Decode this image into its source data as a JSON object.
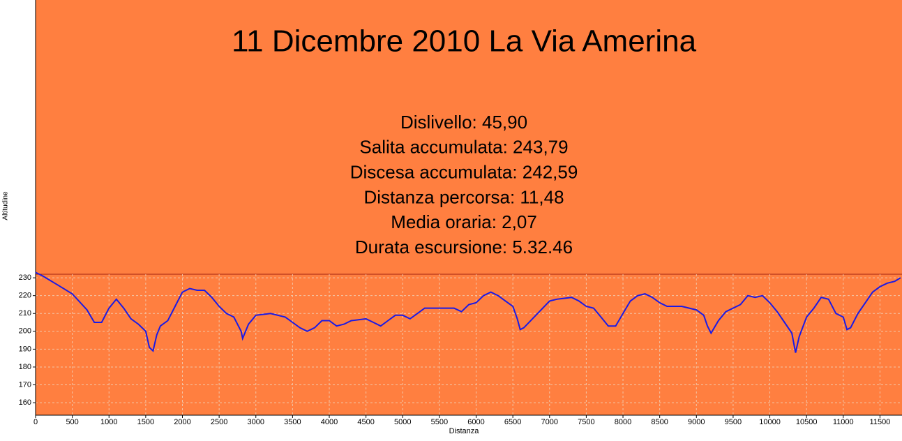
{
  "chart_data": {
    "type": "line",
    "title": "11 Dicembre 2010 La Via Amerina",
    "annotations": [
      "Dislivello: 45,90",
      "Salita accumulata: 243,79",
      "Discesa accumulata: 242,59",
      "Distanza percorsa: 11,48",
      "Media oraria: 2,07",
      "Durata escursione: 5.32.46"
    ],
    "x_label": "Distanza",
    "y_label": "Altitudine",
    "background": "#ff7f40",
    "grid": true,
    "xlim": [
      0,
      11800
    ],
    "ylim": [
      153,
      232
    ],
    "xticks": [
      0,
      500,
      1000,
      1500,
      2000,
      2500,
      3000,
      3500,
      4000,
      4500,
      5000,
      5500,
      6000,
      6500,
      7000,
      7500,
      8000,
      8500,
      9000,
      9500,
      10000,
      10500,
      11000,
      11500
    ],
    "yticks": [
      160,
      170,
      180,
      190,
      200,
      210,
      220,
      230
    ],
    "x": [
      0,
      100,
      300,
      500,
      700,
      800,
      900,
      1000,
      1100,
      1200,
      1300,
      1400,
      1500,
      1550,
      1600,
      1650,
      1700,
      1800,
      1900,
      2000,
      2100,
      2200,
      2300,
      2400,
      2500,
      2600,
      2700,
      2800,
      2820,
      2900,
      3000,
      3200,
      3400,
      3500,
      3600,
      3700,
      3800,
      3900,
      4000,
      4100,
      4200,
      4300,
      4500,
      4600,
      4700,
      4800,
      4900,
      5000,
      5100,
      5200,
      5300,
      5500,
      5700,
      5800,
      5900,
      6000,
      6100,
      6200,
      6300,
      6400,
      6500,
      6560,
      6600,
      6650,
      7000,
      7100,
      7300,
      7400,
      7500,
      7600,
      7700,
      7800,
      7900,
      8000,
      8100,
      8200,
      8300,
      8400,
      8500,
      8600,
      8800,
      9000,
      9100,
      9150,
      9200,
      9300,
      9400,
      9600,
      9700,
      9800,
      9900,
      10000,
      10100,
      10200,
      10300,
      10350,
      10400,
      10500,
      10600,
      10700,
      10800,
      10900,
      11000,
      11050,
      11100,
      11200,
      11300,
      11400,
      11500,
      11600,
      11700,
      11780
    ],
    "series": [
      {
        "name": "Altitudine",
        "color": "#1a1ae6",
        "values": [
          233,
          231,
          226,
          221,
          212,
          205,
          205,
          213,
          218,
          213,
          207,
          204,
          200,
          191,
          189,
          198,
          203,
          206,
          214,
          222,
          224,
          223,
          223,
          219,
          214,
          210,
          208,
          200,
          196,
          204,
          209,
          210,
          208,
          205,
          202,
          200,
          202,
          206,
          206,
          203,
          204,
          206,
          207,
          205,
          203,
          206,
          209,
          209,
          207,
          210,
          213,
          213,
          213,
          211,
          215,
          216,
          220,
          222,
          220,
          217,
          214,
          207,
          201,
          202,
          217,
          218,
          219,
          217,
          214,
          213,
          208,
          203,
          203,
          210,
          217,
          220,
          221,
          219,
          216,
          214,
          214,
          212,
          209,
          203,
          199,
          206,
          211,
          215,
          220,
          219,
          220,
          216,
          211,
          205,
          199,
          188,
          197,
          208,
          213,
          219,
          218,
          210,
          208,
          201,
          202,
          210,
          216,
          222,
          225,
          227,
          228,
          230
        ]
      }
    ]
  }
}
